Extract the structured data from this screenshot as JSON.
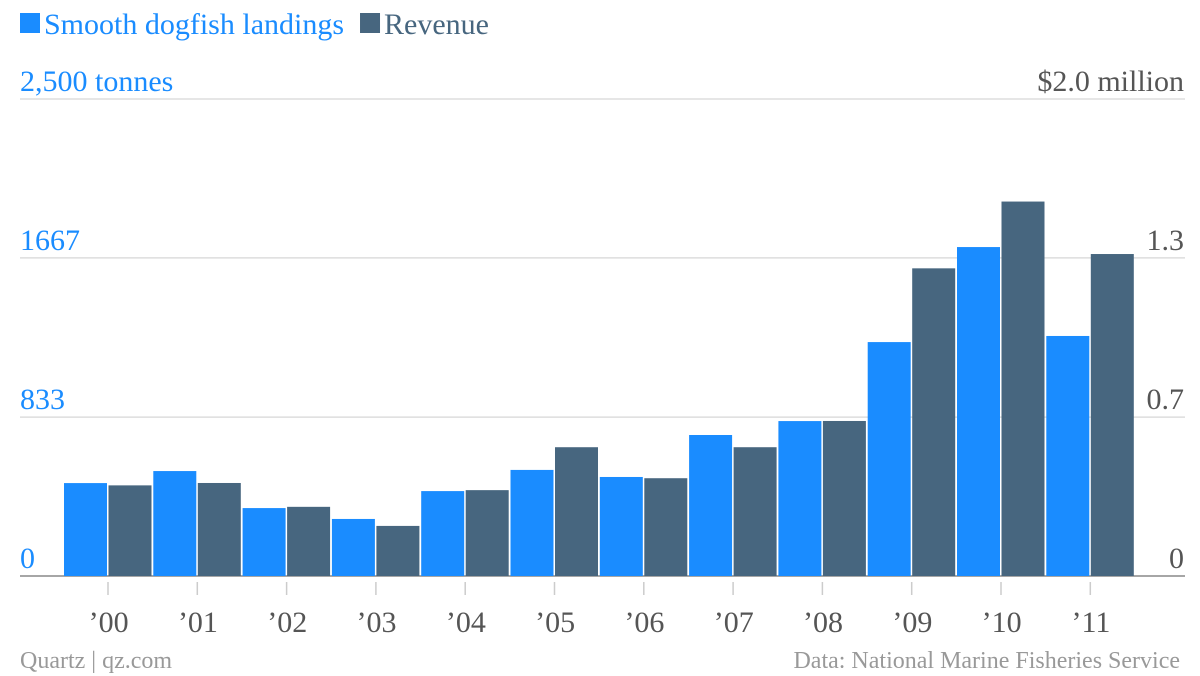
{
  "chart_data": {
    "type": "bar",
    "categories": [
      "’00",
      "’01",
      "’02",
      "’03",
      "’04",
      "’05",
      "’06",
      "’07",
      "’08",
      "’09",
      "’10",
      "’11"
    ],
    "series": [
      {
        "name": "Smooth dogfish landings",
        "color": "#1a8cff",
        "values": [
          487,
          550,
          356,
          299,
          445,
          556,
          519,
          739,
          812,
          1226,
          1724,
          1258
        ]
      },
      {
        "name": "Revenue",
        "color": "#47667f",
        "axis": "y2",
        "values": [
          0.38,
          0.39,
          0.29,
          0.21,
          0.36,
          0.54,
          0.41,
          0.54,
          0.65,
          1.29,
          1.57,
          1.35
        ]
      }
    ],
    "ylim": [
      0,
      2500
    ],
    "yticks": [
      0,
      833,
      1667,
      {
        "value": 2500,
        "label": "2,500 tonnes"
      }
    ],
    "y2lim": [
      0,
      2.0
    ],
    "y2ticks": [
      0,
      {
        "value": 0.667,
        "label": "0.7"
      },
      {
        "value": 1.333,
        "label": "1.3"
      },
      {
        "value": 2.0,
        "label": "$2.0 million"
      }
    ],
    "grid": true,
    "legend": "top",
    "credit": "Quartz | qz.com",
    "source": "Data: National Marine Fisheries Service"
  }
}
